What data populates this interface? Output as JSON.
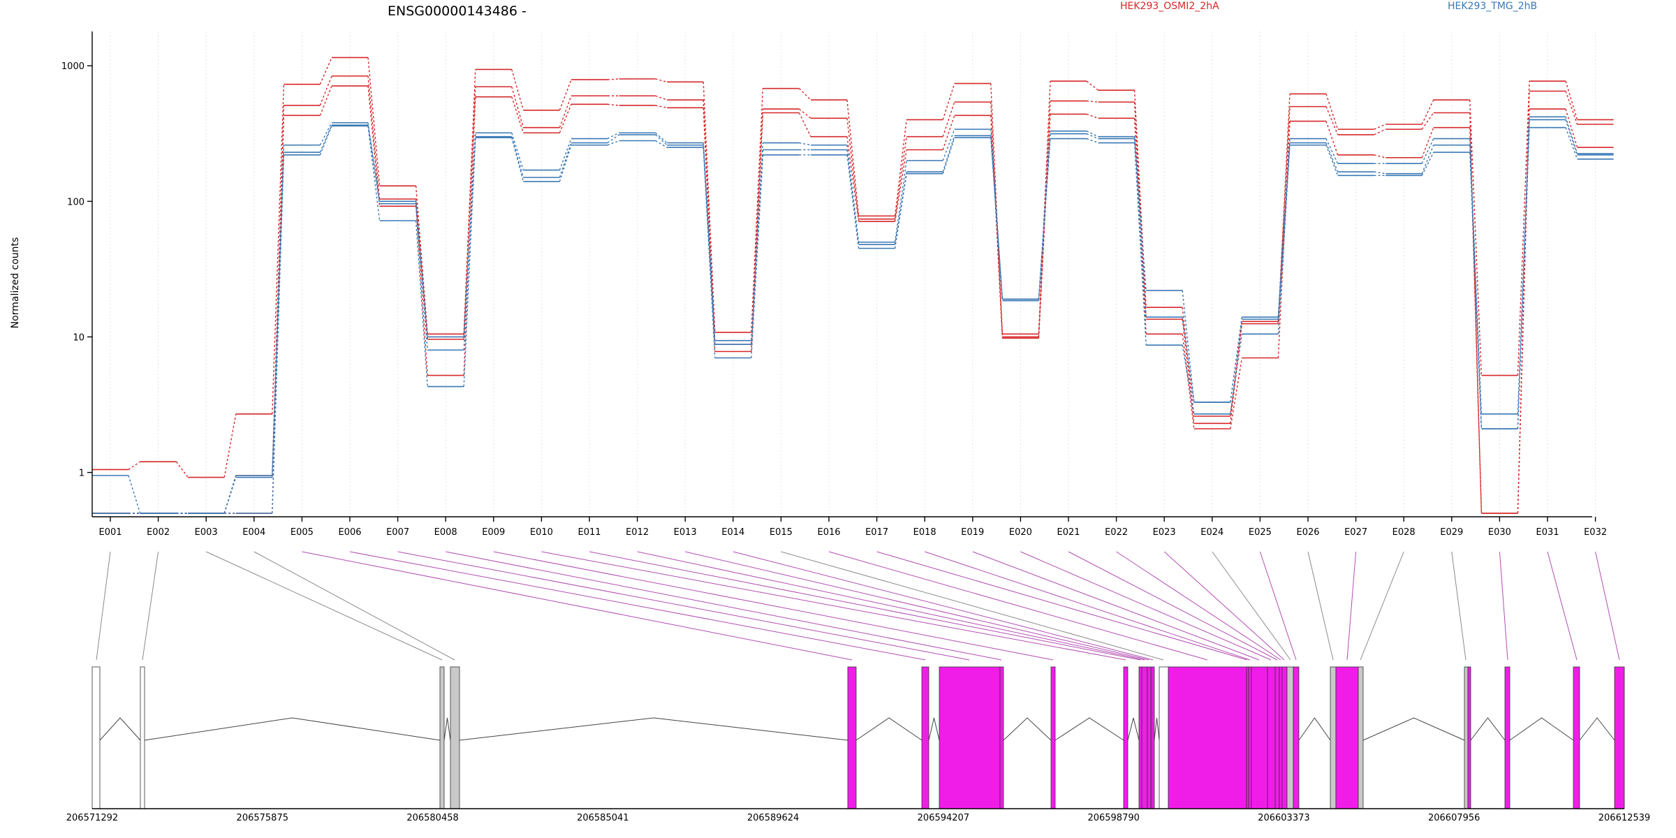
{
  "chart_data": {
    "type": "line",
    "title": "ENSG00000143486 -",
    "ylabel": "Normalized counts",
    "yscale": "log",
    "ylim": [
      0.5,
      1500
    ],
    "yticks": [
      1,
      10,
      100,
      1000
    ],
    "categories": [
      "E001",
      "E002",
      "E003",
      "E004",
      "E005",
      "E006",
      "E007",
      "E008",
      "E009",
      "E010",
      "E011",
      "E012",
      "E013",
      "E014",
      "E015",
      "E016",
      "E017",
      "E018",
      "E019",
      "E020",
      "E021",
      "E022",
      "E023",
      "E024",
      "E025",
      "E026",
      "E027",
      "E028",
      "E029",
      "E030",
      "E031",
      "E032"
    ],
    "legend_placement": "top",
    "grid": "vertical dotted",
    "series": [
      {
        "name": "HEK293_OSMI2_2hA",
        "color": "#d62728",
        "values": [
          1.05,
          1.2,
          0.92,
          2.7,
          730,
          1150,
          130,
          10.5,
          940,
          470,
          790,
          800,
          760,
          10.8,
          680,
          560,
          78,
          400,
          740,
          10.5,
          770,
          660,
          16.5,
          2.6,
          13,
          620,
          340,
          370,
          560,
          5.2,
          770,
          400
        ]
      },
      {
        "name": "",
        "color": "#d62728",
        "values": [
          0.5,
          0.5,
          0.5,
          0.95,
          510,
          840,
          104,
          9.6,
          700,
          350,
          600,
          600,
          560,
          8.8,
          480,
          410,
          74,
          300,
          540,
          10,
          550,
          540,
          13.5,
          2.3,
          12.5,
          500,
          310,
          340,
          450,
          0.5,
          650,
          370
        ]
      },
      {
        "name": "",
        "color": "#d62728",
        "values": [
          0.5,
          0.5,
          0.5,
          0.5,
          430,
          710,
          92,
          5.2,
          590,
          320,
          520,
          510,
          490,
          7.8,
          450,
          300,
          71,
          240,
          430,
          9.8,
          440,
          410,
          10.5,
          2.1,
          7,
          390,
          220,
          210,
          350,
          0.5,
          480,
          250
        ]
      },
      {
        "name": "HEK293_TMG_2hB",
        "color": "#3a78b5",
        "values": [
          0.95,
          0.5,
          0.5,
          0.92,
          260,
          380,
          100,
          10,
          320,
          170,
          290,
          320,
          270,
          9.4,
          270,
          260,
          50,
          200,
          340,
          19,
          330,
          300,
          22,
          3.3,
          14,
          290,
          190,
          190,
          290,
          2.7,
          420,
          225
        ]
      },
      {
        "name": "",
        "color": "#3a78b5",
        "values": [
          0.5,
          0.5,
          0.5,
          0.95,
          230,
          365,
          96,
          8,
          300,
          150,
          270,
          310,
          260,
          8.8,
          240,
          240,
          48,
          165,
          305,
          19,
          315,
          290,
          14,
          3.3,
          13.5,
          270,
          165,
          160,
          260,
          2.1,
          400,
          220
        ]
      },
      {
        "name": "",
        "color": "#3a78b5",
        "values": [
          0.5,
          0.5,
          0.5,
          0.5,
          220,
          360,
          72,
          4.3,
          295,
          140,
          260,
          280,
          250,
          7,
          220,
          220,
          45,
          160,
          295,
          18.5,
          290,
          270,
          8.7,
          2.7,
          10.5,
          260,
          155,
          155,
          230,
          2.1,
          350,
          205
        ]
      }
    ],
    "gene_model": {
      "genomic_ticks": [
        "206571292",
        "206575875",
        "206580458",
        "206585041",
        "206589624",
        "206594207",
        "206598790",
        "206603373",
        "206607956",
        "206612539"
      ],
      "exon_kinds": [
        "white",
        "white",
        "gray",
        "gray",
        "magenta",
        "magenta",
        "magenta",
        "magenta",
        "magenta",
        "magenta",
        "magenta",
        "magenta",
        "magenta",
        "magenta",
        "white",
        "magenta",
        "magenta",
        "magenta",
        "magenta",
        "magenta",
        "magenta",
        "magenta",
        "magenta",
        "gray",
        "magenta",
        "gray",
        "magenta",
        "gray",
        "gray",
        "magenta",
        "magenta",
        "magenta"
      ],
      "colors": {
        "magenta": "#f01de8",
        "gray": "#c9c9c9",
        "white": "#ffffff",
        "link_gray": "#8a8a8a",
        "link_magenta": "#b34db3"
      }
    }
  }
}
